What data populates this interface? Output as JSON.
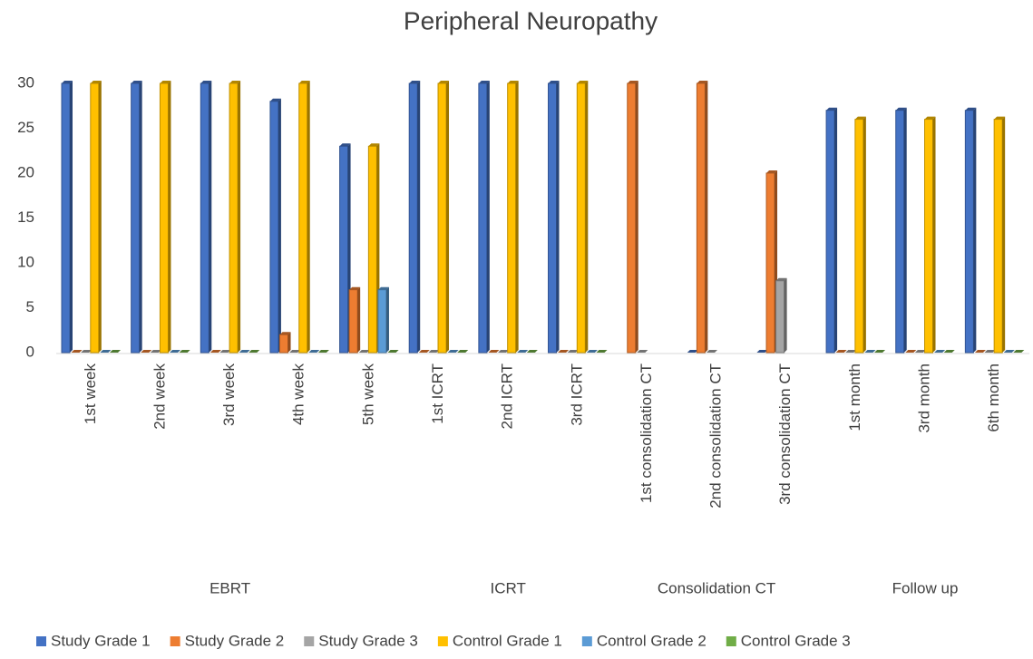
{
  "chart_data": {
    "type": "bar",
    "title": "Peripheral Neuropathy",
    "categories": [
      "1st week",
      "2nd week",
      "3rd week",
      "4th week",
      "5th week",
      "1st ICRT",
      "2nd ICRT",
      "3rd ICRT",
      "1st consolidation CT",
      "2nd consolidation CT",
      "3rd consolidation CT",
      "1st month",
      "3rd  month",
      "6th month"
    ],
    "groups": [
      {
        "label": "EBRT",
        "span": 5
      },
      {
        "label": "ICRT",
        "span": 3
      },
      {
        "label": "Consolidation CT",
        "span": 3
      },
      {
        "label": "Follow up",
        "span": 3
      }
    ],
    "series": [
      {
        "name": "Study Grade 1",
        "color": "#4472c4",
        "values": [
          30,
          30,
          30,
          28,
          23,
          30,
          30,
          30,
          null,
          0,
          0,
          27,
          27,
          27
        ]
      },
      {
        "name": "Study Grade 2",
        "color": "#ed7d31",
        "values": [
          0,
          0,
          0,
          2,
          7,
          0,
          0,
          0,
          30,
          30,
          20,
          0,
          0,
          0
        ]
      },
      {
        "name": "Study Grade 3",
        "color": "#a5a5a5",
        "values": [
          0,
          0,
          0,
          0,
          0,
          0,
          0,
          0,
          0,
          0,
          8,
          0,
          0,
          0
        ]
      },
      {
        "name": "Control  Grade 1",
        "color": "#ffc000",
        "values": [
          30,
          30,
          30,
          30,
          23,
          30,
          30,
          30,
          null,
          null,
          null,
          26,
          26,
          26
        ]
      },
      {
        "name": "Control  Grade 2",
        "color": "#5b9bd5",
        "values": [
          0,
          0,
          0,
          0,
          7,
          0,
          0,
          0,
          null,
          null,
          null,
          0,
          0,
          0
        ]
      },
      {
        "name": "Control  Grade 3",
        "color": "#70ad47",
        "values": [
          0,
          0,
          0,
          0,
          0,
          0,
          0,
          0,
          null,
          null,
          null,
          0,
          0,
          0
        ]
      }
    ],
    "ylim": [
      0,
      30
    ],
    "yticks": [
      0,
      5,
      10,
      15,
      20,
      25,
      30
    ],
    "grid": false,
    "legend": "bottom"
  }
}
